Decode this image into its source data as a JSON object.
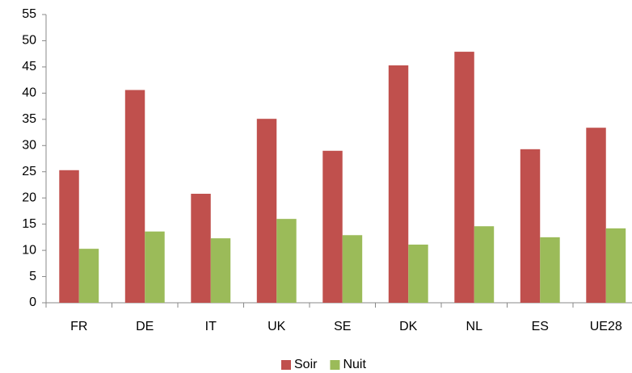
{
  "chart_data": {
    "type": "bar",
    "categories": [
      "FR",
      "DE",
      "IT",
      "UK",
      "SE",
      "DK",
      "NL",
      "ES",
      "UE28"
    ],
    "series": [
      {
        "name": "Soir",
        "color": "#c0504d",
        "values": [
          25.3,
          40.6,
          20.8,
          35.1,
          29.0,
          45.3,
          47.9,
          29.3,
          33.4
        ]
      },
      {
        "name": "Nuit",
        "color": "#9bbb59",
        "values": [
          10.3,
          13.6,
          12.3,
          16.0,
          12.9,
          11.1,
          14.6,
          12.5,
          14.2
        ]
      }
    ],
    "ylim": [
      0,
      55
    ],
    "yticks": [
      0,
      5,
      10,
      15,
      20,
      25,
      30,
      35,
      40,
      45,
      50,
      55
    ],
    "grid": false,
    "legend": "bottom"
  }
}
